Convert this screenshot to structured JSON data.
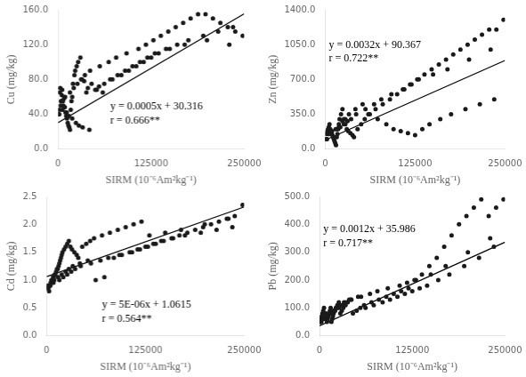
{
  "chart_data": [
    {
      "type": "scatter",
      "x_label": "SIRM (10⁻⁶Am²kg⁻¹)",
      "y_label": "Cu (mg/kg)",
      "grid": false,
      "xlim": [
        0,
        250000
      ],
      "xticks": [
        0,
        125000,
        250000
      ],
      "ylim": [
        0,
        160.0
      ],
      "yticks": [
        {
          "value": 0.0,
          "label": "0.0"
        },
        {
          "value": 40.0,
          "label": "40.0"
        },
        {
          "value": 80.0,
          "label": "80.0"
        },
        {
          "value": 120.0,
          "label": "120.0"
        },
        {
          "value": 160.0,
          "label": "160.0"
        }
      ],
      "annotations": [
        {
          "text": "y = 0.0005x + 30.316",
          "x": 70000,
          "y": 55
        },
        {
          "text": "r = 0.666**",
          "x": 70000,
          "y": 39
        }
      ],
      "series": [
        {
          "type": "scatter",
          "color": "#1a1a1a",
          "marker": "circle",
          "x": [
            1200,
            2500,
            3000,
            4000,
            5000,
            5500,
            6000,
            7000,
            8000,
            9000,
            10000,
            11000,
            12000,
            13000,
            14000,
            15000,
            16000,
            17000,
            18000,
            19000,
            20000,
            22000,
            23000,
            25000,
            27000,
            30000,
            32000,
            35000,
            38000,
            40000,
            45000,
            50000,
            55000,
            60000,
            70000,
            80000,
            90000,
            100000,
            110000,
            120000,
            130000,
            150000,
            170000,
            200000,
            230000,
            2000,
            3500,
            6500,
            8500,
            11500,
            14500,
            19000,
            24000,
            28000,
            33000,
            42000,
            52000,
            62000,
            73000,
            85000,
            95000,
            105000,
            115000,
            125000,
            135000,
            145000,
            160000,
            175000,
            195000,
            215000,
            235000,
            1500,
            4500,
            9500,
            16000,
            21000,
            26000,
            31000,
            36000,
            43000,
            56000,
            68000,
            78000,
            92000,
            108000,
            118000,
            128000,
            138000,
            148000,
            158000,
            168000,
            178000,
            188000,
            198000,
            208000,
            218000,
            228000,
            238000,
            248000
          ],
          "values": [
            40,
            65,
            70,
            55,
            62,
            68,
            45,
            50,
            58,
            48,
            42,
            38,
            35,
            30,
            27,
            25,
            22,
            45,
            55,
            60,
            75,
            85,
            90,
            95,
            100,
            105,
            80,
            78,
            65,
            70,
            75,
            68,
            72,
            65,
            80,
            85,
            90,
            95,
            100,
            105,
            110,
            115,
            120,
            125,
            120,
            45,
            50,
            55,
            48,
            42,
            38,
            35,
            30,
            27,
            25,
            22,
            68,
            75,
            80,
            85,
            90,
            95,
            100,
            105,
            110,
            115,
            120,
            125,
            130,
            135,
            140,
            40,
            55,
            60,
            65,
            70,
            75,
            80,
            85,
            90,
            95,
            100,
            105,
            110,
            115,
            120,
            125,
            130,
            135,
            140,
            145,
            150,
            155,
            155,
            150,
            145,
            140,
            135,
            130
          ]
        },
        {
          "type": "line",
          "color": "#000000",
          "line_style": "solid",
          "x": [
            0,
            250000
          ],
          "values": [
            30.316,
            155.316
          ]
        }
      ]
    },
    {
      "type": "scatter",
      "x_label": "SIRM (10⁻⁶Am²kg⁻¹)",
      "y_label": "Zn (mg/kg)",
      "grid": false,
      "xlim": [
        0,
        250000
      ],
      "xticks": [
        0,
        125000,
        250000
      ],
      "ylim": [
        0,
        1400.0
      ],
      "yticks": [
        {
          "value": 0.0,
          "label": "0.0"
        },
        {
          "value": 350.0,
          "label": "350.0"
        },
        {
          "value": 700.0,
          "label": "700.0"
        },
        {
          "value": 1050.0,
          "label": "1050.0"
        },
        {
          "value": 1400.0,
          "label": "1400.0"
        }
      ],
      "annotations": [
        {
          "text": "y = 0.0032x + 90.367",
          "x": 5000,
          "y": 1100
        },
        {
          "text": "r = 0.722**",
          "x": 5000,
          "y": 960
        }
      ],
      "series": [
        {
          "type": "scatter",
          "color": "#1a1a1a",
          "marker": "circle",
          "x": [
            1000,
            2000,
            3000,
            4000,
            5000,
            6000,
            7000,
            8000,
            9000,
            10000,
            11000,
            12000,
            13000,
            14000,
            15000,
            16000,
            17000,
            18000,
            19000,
            20000,
            22000,
            24000,
            26000,
            28000,
            30000,
            32000,
            35000,
            38000,
            40000,
            45000,
            50000,
            55000,
            60000,
            70000,
            80000,
            90000,
            100000,
            110000,
            120000,
            130000,
            150000,
            170000,
            200000,
            230000,
            2500,
            5500,
            9500,
            14500,
            19000,
            24000,
            28000,
            33000,
            42000,
            52000,
            62000,
            73000,
            85000,
            95000,
            105000,
            115000,
            125000,
            135000,
            145000,
            160000,
            175000,
            195000,
            215000,
            235000,
            1500,
            4500,
            8500,
            16000,
            21000,
            26000,
            31000,
            36000,
            43000,
            56000,
            68000,
            78000,
            92000,
            108000,
            118000,
            128000,
            138000,
            148000,
            158000,
            168000,
            178000,
            188000,
            198000,
            208000,
            218000,
            228000,
            238000,
            248000
          ],
          "values": [
            100,
            150,
            180,
            200,
            220,
            250,
            200,
            180,
            160,
            140,
            120,
            100,
            80,
            60,
            40,
            120,
            150,
            200,
            250,
            300,
            350,
            400,
            300,
            250,
            200,
            180,
            160,
            140,
            120,
            200,
            250,
            300,
            350,
            400,
            450,
            500,
            550,
            600,
            650,
            700,
            750,
            800,
            900,
            1000,
            100,
            150,
            180,
            200,
            220,
            280,
            300,
            350,
            400,
            450,
            350,
            300,
            250,
            200,
            180,
            160,
            140,
            200,
            250,
            300,
            350,
            400,
            450,
            500,
            100,
            150,
            180,
            200,
            220,
            250,
            280,
            300,
            350,
            400,
            450,
            500,
            550,
            600,
            650,
            700,
            750,
            800,
            850,
            900,
            950,
            1000,
            1050,
            1100,
            1150,
            1200,
            1200,
            1300
          ]
        },
        {
          "type": "line",
          "color": "#000000",
          "line_style": "solid",
          "x": [
            0,
            250000
          ],
          "values": [
            90.367,
            890.367
          ]
        }
      ]
    },
    {
      "type": "scatter",
      "x_label": "SIRM (10⁻⁶Am²kg⁻¹)",
      "y_label": "Cd (mg/kg)",
      "grid": false,
      "xlim": [
        0,
        250000
      ],
      "xticks": [
        0,
        125000,
        250000
      ],
      "ylim": [
        0,
        2.5
      ],
      "yticks": [
        {
          "value": 0.0,
          "label": "0.0"
        },
        {
          "value": 0.5,
          "label": "0.5"
        },
        {
          "value": 1.0,
          "label": "1.0"
        },
        {
          "value": 1.5,
          "label": "1.5"
        },
        {
          "value": 2.0,
          "label": "2.0"
        },
        {
          "value": 2.5,
          "label": "2.5"
        }
      ],
      "annotations": [
        {
          "text": "y = 5E-06x + 1.0615",
          "x": 70000,
          "y": 0.65
        },
        {
          "text": "r = 0.564**",
          "x": 70000,
          "y": 0.4
        }
      ],
      "series": [
        {
          "type": "scatter",
          "color": "#1a1a1a",
          "marker": "circle",
          "x": [
            1000,
            2000,
            3000,
            4000,
            5000,
            6000,
            7000,
            8000,
            9000,
            10000,
            11000,
            12000,
            13000,
            14000,
            15000,
            16000,
            17000,
            18000,
            19000,
            20000,
            22000,
            24000,
            26000,
            28000,
            30000,
            32000,
            35000,
            38000,
            40000,
            45000,
            50000,
            55000,
            60000,
            70000,
            80000,
            90000,
            100000,
            110000,
            120000,
            130000,
            150000,
            170000,
            200000,
            230000,
            2500,
            5500,
            9500,
            14500,
            19000,
            24000,
            28000,
            33000,
            42000,
            52000,
            62000,
            73000,
            85000,
            95000,
            105000,
            115000,
            125000,
            135000,
            145000,
            160000,
            175000,
            195000,
            215000,
            235000,
            1500,
            4500,
            8500,
            16000,
            21000,
            26000,
            31000,
            36000,
            43000,
            56000,
            68000,
            78000,
            92000,
            108000,
            118000,
            128000,
            138000,
            148000,
            158000,
            168000,
            178000,
            188000,
            198000,
            208000,
            218000,
            228000,
            238000,
            248000
          ],
          "values": [
            0.9,
            0.85,
            0.8,
            0.9,
            0.95,
            1.0,
            1.0,
            1.05,
            1.05,
            1.1,
            1.1,
            1.15,
            1.2,
            1.2,
            1.25,
            1.3,
            1.35,
            1.4,
            1.45,
            1.5,
            1.55,
            1.6,
            1.65,
            1.7,
            1.6,
            1.55,
            1.5,
            1.45,
            1.4,
            1.6,
            1.65,
            1.7,
            1.75,
            1.8,
            1.85,
            1.9,
            1.95,
            2.0,
            2.05,
            1.8,
            1.85,
            1.9,
            2.0,
            2.1,
            0.9,
            0.95,
            1.0,
            1.05,
            1.1,
            1.15,
            1.2,
            1.25,
            1.3,
            1.35,
            1.0,
            1.05,
            1.4,
            1.45,
            1.5,
            1.55,
            1.6,
            1.65,
            1.7,
            1.75,
            1.8,
            1.85,
            1.9,
            1.95,
            0.85,
            0.9,
            0.95,
            1.0,
            1.05,
            1.1,
            1.15,
            1.2,
            1.25,
            1.3,
            1.35,
            1.4,
            1.45,
            1.5,
            1.55,
            1.6,
            1.65,
            1.7,
            1.75,
            1.8,
            1.85,
            1.9,
            1.95,
            2.0,
            2.05,
            2.1,
            2.15,
            2.35
          ]
        },
        {
          "type": "line",
          "color": "#000000",
          "line_style": "solid",
          "x": [
            0,
            250000
          ],
          "values": [
            1.0615,
            2.3115
          ]
        }
      ]
    },
    {
      "type": "scatter",
      "x_label": "SIRM (10⁻⁶Am²kg⁻¹)",
      "y_label": "Pb (mg/kg)",
      "grid": false,
      "xlim": [
        0,
        250000
      ],
      "xticks": [
        0,
        125000,
        250000
      ],
      "ylim": [
        0,
        500.0
      ],
      "yticks": [
        {
          "value": 0.0,
          "label": "0.0"
        },
        {
          "value": 100.0,
          "label": "100.0"
        },
        {
          "value": 200.0,
          "label": "200.0"
        },
        {
          "value": 300.0,
          "label": "300.0"
        },
        {
          "value": 400.0,
          "label": "400.0"
        },
        {
          "value": 500.0,
          "label": "500.0"
        }
      ],
      "annotations": [
        {
          "text": "y = 0.0012x + 35.986",
          "x": 5000,
          "y": 400
        },
        {
          "text": "r = 0.717**",
          "x": 5000,
          "y": 350
        }
      ],
      "series": [
        {
          "type": "scatter",
          "color": "#1a1a1a",
          "marker": "circle",
          "x": [
            1000,
            2000,
            3000,
            4000,
            5000,
            6000,
            7000,
            8000,
            9000,
            10000,
            11000,
            12000,
            13000,
            14000,
            15000,
            16000,
            17000,
            18000,
            19000,
            20000,
            22000,
            24000,
            26000,
            28000,
            30000,
            32000,
            35000,
            38000,
            40000,
            45000,
            50000,
            55000,
            60000,
            70000,
            80000,
            90000,
            100000,
            110000,
            120000,
            130000,
            150000,
            170000,
            200000,
            230000,
            2500,
            5500,
            9500,
            14500,
            19000,
            24000,
            28000,
            33000,
            42000,
            52000,
            62000,
            73000,
            85000,
            95000,
            105000,
            115000,
            125000,
            135000,
            145000,
            160000,
            175000,
            195000,
            215000,
            235000,
            1500,
            4500,
            8500,
            16000,
            21000,
            26000,
            31000,
            36000,
            43000,
            56000,
            68000,
            78000,
            92000,
            108000,
            118000,
            128000,
            138000,
            148000,
            158000,
            168000,
            178000,
            188000,
            198000,
            208000,
            218000,
            228000,
            238000,
            248000
          ],
          "values": [
            50,
            60,
            70,
            80,
            90,
            100,
            60,
            70,
            80,
            50,
            60,
            70,
            80,
            90,
            100,
            50,
            60,
            70,
            80,
            90,
            100,
            110,
            120,
            80,
            90,
            100,
            110,
            120,
            130,
            80,
            90,
            100,
            110,
            120,
            130,
            140,
            150,
            160,
            170,
            200,
            220,
            250,
            300,
            350,
            50,
            60,
            70,
            80,
            90,
            100,
            110,
            120,
            130,
            140,
            100,
            110,
            120,
            130,
            140,
            150,
            160,
            170,
            180,
            200,
            220,
            250,
            280,
            320,
            50,
            60,
            70,
            80,
            90,
            100,
            110,
            120,
            130,
            140,
            150,
            160,
            170,
            180,
            190,
            200,
            220,
            250,
            280,
            320,
            360,
            400,
            430,
            460,
            490,
            430,
            460,
            490
          ]
        },
        {
          "type": "line",
          "color": "#000000",
          "line_style": "solid",
          "x": [
            0,
            250000
          ],
          "values": [
            35.986,
            335.986
          ]
        }
      ]
    }
  ]
}
